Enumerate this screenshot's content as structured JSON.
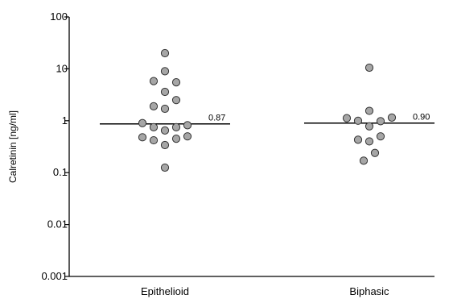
{
  "chart_data": {
    "type": "scatter",
    "title": "",
    "xlabel": "",
    "ylabel": "Calretinin [ng/ml]",
    "yscale": "log",
    "ylim": [
      0.001,
      100
    ],
    "yticks": [
      {
        "value": 100,
        "label": "100"
      },
      {
        "value": 10,
        "label": "10"
      },
      {
        "value": 1,
        "label": "1"
      },
      {
        "value": 0.1,
        "label": "0.1"
      },
      {
        "value": 0.01,
        "label": "0.01"
      },
      {
        "value": 0.001,
        "label": "0.001"
      }
    ],
    "categories": [
      "Epithelioid",
      "Biphasic"
    ],
    "marker_color": "#a6a6a6",
    "series": [
      {
        "category": "Epithelioid",
        "median": 0.87,
        "median_label": "0.87",
        "points": [
          {
            "offset": 0,
            "value": 20
          },
          {
            "offset": 0,
            "value": 9
          },
          {
            "offset": -1,
            "value": 5.8
          },
          {
            "offset": 1,
            "value": 5.5
          },
          {
            "offset": 0,
            "value": 3.6
          },
          {
            "offset": 1,
            "value": 2.5
          },
          {
            "offset": -1,
            "value": 1.9
          },
          {
            "offset": 0,
            "value": 1.7
          },
          {
            "offset": -2,
            "value": 0.9
          },
          {
            "offset": -1,
            "value": 0.75
          },
          {
            "offset": 0,
            "value": 0.65
          },
          {
            "offset": 1,
            "value": 0.75
          },
          {
            "offset": 2,
            "value": 0.82
          },
          {
            "offset": -2,
            "value": 0.48
          },
          {
            "offset": -1,
            "value": 0.42
          },
          {
            "offset": 0,
            "value": 0.34
          },
          {
            "offset": 1,
            "value": 0.45
          },
          {
            "offset": 2,
            "value": 0.5
          },
          {
            "offset": 0,
            "value": 0.125
          }
        ]
      },
      {
        "category": "Biphasic",
        "median": 0.9,
        "median_label": "0.90",
        "points": [
          {
            "offset": 0,
            "value": 10.5
          },
          {
            "offset": 0,
            "value": 1.55
          },
          {
            "offset": -2,
            "value": 1.12
          },
          {
            "offset": -1,
            "value": 1.0
          },
          {
            "offset": 0,
            "value": 0.78
          },
          {
            "offset": 1,
            "value": 0.98
          },
          {
            "offset": 2,
            "value": 1.15
          },
          {
            "offset": -1,
            "value": 0.43
          },
          {
            "offset": 0,
            "value": 0.4
          },
          {
            "offset": 1,
            "value": 0.5
          },
          {
            "offset": 0.5,
            "value": 0.24
          },
          {
            "offset": -0.5,
            "value": 0.17
          }
        ]
      }
    ]
  }
}
